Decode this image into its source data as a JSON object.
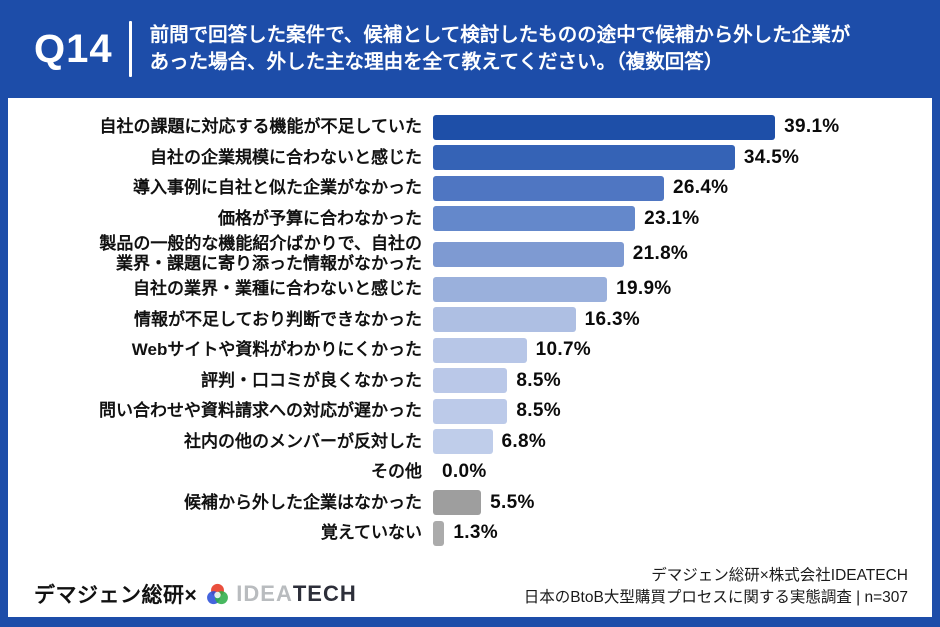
{
  "header": {
    "question_number": "Q14",
    "question_lines": [
      "前問で回答した案件で、候補として検討したものの途中で候補から外した企業が",
      "あった場合、外した主な理由を全て教えてください。（複数回答）"
    ]
  },
  "chart_data": {
    "type": "bar",
    "orientation": "horizontal",
    "unit": "%",
    "xlim": [
      0,
      45
    ],
    "grid": false,
    "legend": "none",
    "categories": [
      "自社の課題に対応する機能が不足していた",
      "自社の企業規模に合わないと感じた",
      "導入事例に自社と似た企業がなかった",
      "価格が予算に合わなかった",
      "製品の一般的な機能紹介ばかりで、自社の\n業界・課題に寄り添った情報がなかった",
      "自社の業界・業種に合わないと感じた",
      "情報が不足しており判断できなかった",
      "Webサイトや資料がわかりにくかった",
      "評判・口コミが良くなかった",
      "問い合わせや資料請求への対応が遅かった",
      "社内の他のメンバーが反対した",
      "その他",
      "候補から外した企業はなかった",
      "覚えていない"
    ],
    "values": [
      39.1,
      34.5,
      26.4,
      23.1,
      21.8,
      19.9,
      16.3,
      10.7,
      8.5,
      8.5,
      6.8,
      0.0,
      5.5,
      1.3
    ],
    "value_labels": [
      "39.1%",
      "34.5%",
      "26.4%",
      "23.1%",
      "21.8%",
      "19.9%",
      "16.3%",
      "10.7%",
      "8.5%",
      "8.5%",
      "6.8%",
      "0.0%",
      "5.5%",
      "1.3%"
    ],
    "bar_colors": [
      "#1e4fa8",
      "#3563b6",
      "#4f76c2",
      "#6488cb",
      "#7e9ad2",
      "#9ab0dc",
      "#aebfe3",
      "#b7c6e7",
      "#bac8e8",
      "#bccae9",
      "#bfcdea",
      "#bfcdea",
      "#9e9e9e",
      "#ababab"
    ]
  },
  "footer": {
    "brand_left": "デマジェン総研×",
    "logo_idea": "IDEA",
    "logo_tech": "TECH",
    "source_line1": "デマジェン総研×株式会社IDEATECH",
    "source_line2": "日本のBtoB大型購買プロセスに関する実態調査 | n=307"
  },
  "colors": {
    "frame_blue": "#1d4da9",
    "panel_white": "#ffffff",
    "label_black": "#111111",
    "gray_bar": "#9e9e9e",
    "logo_red": "#e8402d",
    "logo_green": "#2fae4a",
    "logo_blue": "#2b50d8"
  }
}
